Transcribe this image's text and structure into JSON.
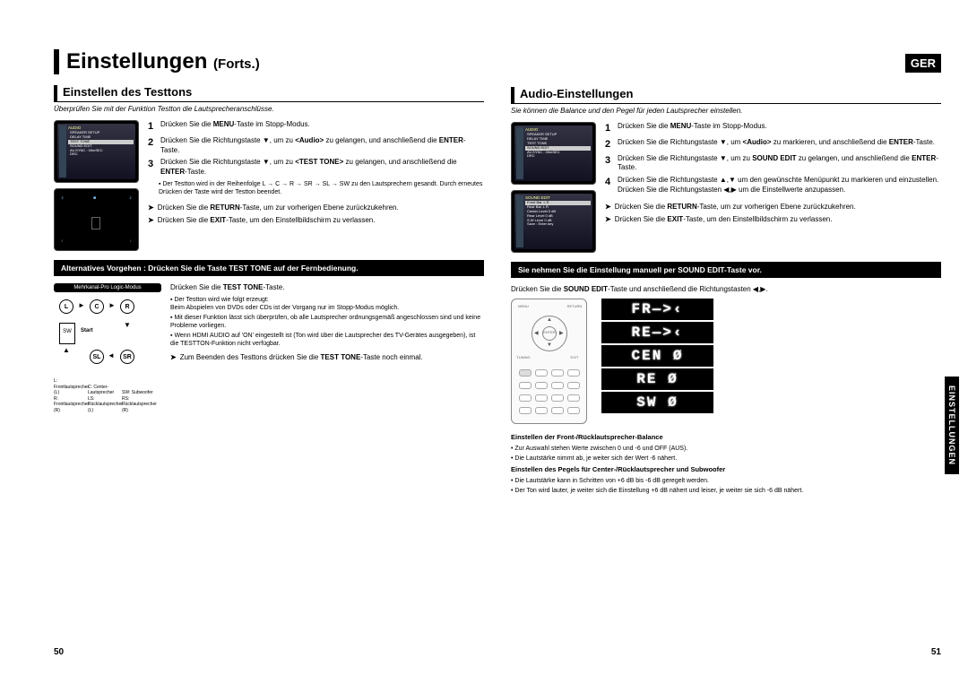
{
  "chapter": {
    "main": "Einstellungen",
    "cont": "(Forts.)"
  },
  "langBadge": "GER",
  "sideTab": "EINSTELLUNGEN",
  "pageLeft": "50",
  "pageRight": "51",
  "left": {
    "title": "Einstellen des Testtons",
    "subtitle": "Überprüfen Sie mit der Funktion Testton die Lautsprecheranschlüsse.",
    "screen1_title": "AUDIO",
    "screen1_rows": [
      "SPEAKER SETUP",
      "DELAY TIME",
      "TEST TONE",
      "SOUND EDIT",
      "AV-SYNC   : 00mSEC",
      "DRC"
    ],
    "screen1_hl": 2,
    "steps": [
      {
        "n": "1",
        "t": "Drücken Sie die <b>MENU</b>-Taste im Stopp-Modus."
      },
      {
        "n": "2",
        "t": "Drücken Sie die Richtungstaste ▼, um zu <b>&lt;Audio&gt;</b> zu gelangen, und anschließend die <b>ENTER</b>-Taste."
      },
      {
        "n": "3",
        "t": "Drücken Sie die Richtungstaste ▼, um zu <b>&lt;TEST TONE&gt;</b> zu gelangen, und anschließend die <b>ENTER</b>-Taste."
      }
    ],
    "note": "Der Testton wird in der Reihenfolge L → C → R → SR → SL → SW zu den Lautsprechern gesandt. Durch erneutes Drücken der Taste wird der Testton beendet.",
    "arrows": [
      "Drücken Sie die <b>RETURN</b>-Taste, um zur vorherigen Ebene zurückzukehren.",
      "Drücken Sie die <b>EXIT</b>-Taste, um den Einstellbildschirm zu verlassen."
    ],
    "bar": "Alternatives Vorgehen : Drücken Sie die Taste TEST TONE auf der Fernbedienung.",
    "plmLabel": "Mehrkanal-Pro Logic-Modus",
    "startLabel": "Start",
    "speakers": {
      "L": "L",
      "C": "C",
      "R": "R",
      "SW": "SW",
      "SL": "SL",
      "SR": "SR"
    },
    "legend": [
      "L: Frontlautsprecher (L)",
      "C: Center-Lautsprecher",
      "SW: Subwoofer",
      "R: Frontlautsprecher (R)",
      "LS: Rücklautsprecher (L)",
      "RS: Rücklautsprecher (R)"
    ],
    "sub": {
      "lead": "Drücken Sie die <b>TEST TONE</b>-Taste.",
      "bullets": [
        "Der Testton wird wie folgt erzeugt:<br>Beim Abspielen von DVDs oder CDs ist der Vorgang nur im Stopp-Modus möglich.",
        "Mit dieser Funktion lässt sich überprüfen, ob alle Lautsprecher ordnungsgemäß angeschlossen sind und keine Probleme vorliegen.",
        "Wenn HDMI AUDIO auf 'ON' eingestellt ist (Ton wird über die Lautsprecher des TV-Gerätes ausgegeben), ist die TESTTON-Funktion nicht verfügbar."
      ],
      "arrow": "Zum Beenden des Testtons drücken Sie die <b>TEST TONE</b>-Taste noch einmal."
    }
  },
  "right": {
    "title": "Audio-Einstellungen",
    "subtitle": "Sie können die Balance und den Pegel für jeden Lautsprecher einstellen.",
    "screen1_title": "AUDIO",
    "screen1_rows": [
      "SPEAKER SETUP",
      "DELAY TIME",
      "TEST TONE",
      "SOUND EDIT",
      "AV-SYNC   : 00mSEC",
      "DRC"
    ],
    "screen1_hl": 3,
    "screen2_title": "SOUND EDIT",
    "screen2_rows": [
      "Front Bal.  L  R",
      "Rear Bal.  L  R",
      "Center Level  0 dB",
      "Rear Level  0 dB",
      "S.W Level  0 dB",
      "Save : Enter key"
    ],
    "steps": [
      {
        "n": "1",
        "t": "Drücken Sie die <b>MENU</b>-Taste im Stopp-Modus."
      },
      {
        "n": "2",
        "t": "Drücken Sie die Richtungstaste ▼, um <b>&lt;Audio&gt;</b> zu markieren, und anschließend die <b>ENTER</b>-Taste."
      },
      {
        "n": "3",
        "t": "Drücken Sie die Richtungstaste ▼, um zu <b>SOUND EDIT</b> zu gelangen, und anschließend die <b>ENTER</b>-Taste."
      },
      {
        "n": "4",
        "t": "Drücken Sie die Richtungstaste ▲,▼ um den gewünschte Menüpunkt zu markieren und einzustellen. Drücken Sie die Richtungstasten ◀,▶ um die Einstellwerte anzupassen."
      }
    ],
    "arrows": [
      "Drücken Sie die <b>RETURN</b>-Taste, um zur vorherigen Ebene zurückzukehren.",
      "Drücken Sie die <b>EXIT</b>-Taste, um den Einstellbildschirm zu verlassen."
    ],
    "bar": "Sie nehmen Sie die Einstellung manuell per SOUND EDIT-Taste vor.",
    "lead": "Drücken Sie die <b>SOUND EDIT</b>-Taste und anschließend die Richtungstasten ◀,▶.",
    "lcd": [
      "FR—>‹",
      "RE—>‹",
      "CEN Ø",
      "RE  Ø",
      "SW  Ø"
    ],
    "foot": {
      "h1": "Einstellen der Front-/Rücklautsprecher-Balance",
      "l1": "Zur Auswahl stehen Werte zwischen 0 und -6 und OFF (AUS).",
      "l2": "Die Lautstärke nimmt ab, je weiter sich der Wert -6 nähert.",
      "h2": "Einstellen des Pegels für Center-/Rücklautsprecher und Subwoofer",
      "l3": "Die Lautstärke kann in Schritten von +6 dB bis -6 dB geregelt werden.",
      "l4": "Der Ton wird lauter, je weiter sich die Einstellung +6 dB nähert und leiser, je weiter sie sich -6 dB nähert."
    }
  }
}
